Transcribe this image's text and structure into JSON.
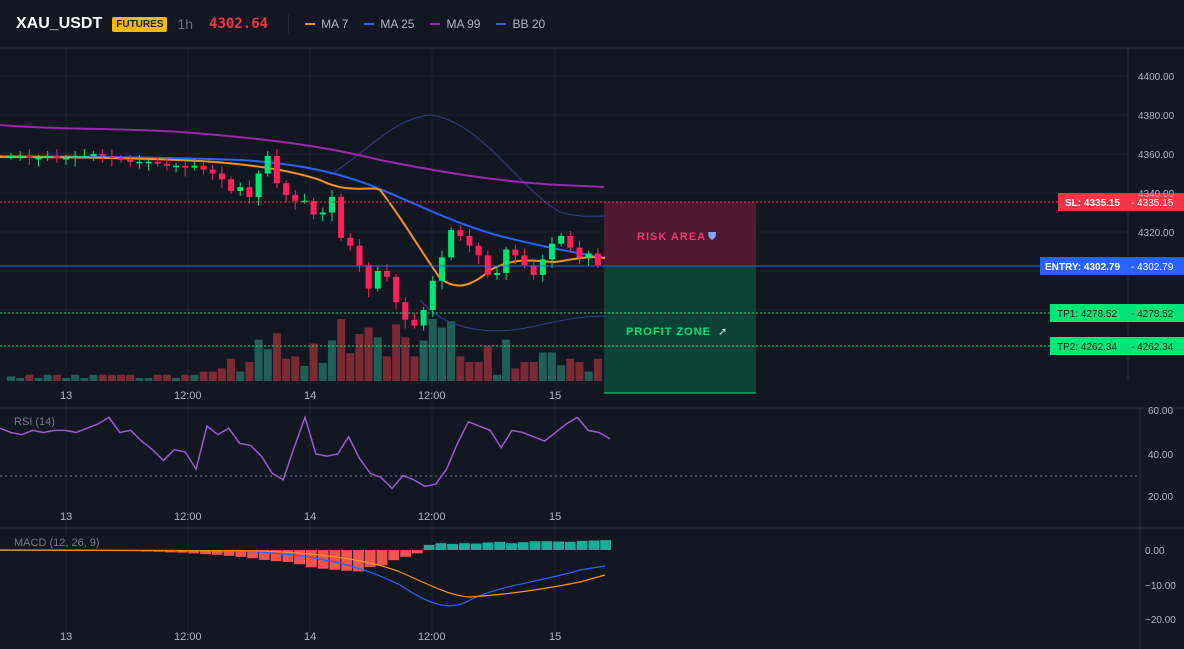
{
  "header": {
    "symbol": "XAU_USDT",
    "badge": "FUTURES",
    "timeframe": "1h",
    "price": "4302.64",
    "indicators": [
      {
        "label": "MA 7",
        "color": "#f7931a"
      },
      {
        "label": "MA 25",
        "color": "#2962ff"
      },
      {
        "label": "MA 99",
        "color": "#9c27b0"
      },
      {
        "label": "BB 20",
        "color": "#3b5bdb"
      }
    ]
  },
  "main_chart": {
    "y_ticks": [
      "4400.00",
      "4380.00",
      "4360.00",
      "4340.00",
      "4320.00"
    ],
    "x_ticks": [
      "13",
      "12:00",
      "14",
      "12:00",
      "15"
    ],
    "levels": {
      "sl": {
        "label": "SL: 4335.15",
        "value": "4335.15",
        "color": "#f23645"
      },
      "entry": {
        "label": "ENTRY: 4302.79",
        "value": "4302.79",
        "color": "#2962ff"
      },
      "tp1": {
        "label": "TP1: 4278.52",
        "value": "4278.52",
        "color": "#00e676"
      },
      "tp2": {
        "label": "TP2: 4262.34",
        "value": "4262.34",
        "color": "#00e676"
      }
    },
    "risk_label": "RISK AREA",
    "profit_label": "PROFIT ZONE"
  },
  "rsi": {
    "title": "RSI (14)",
    "y_ticks": [
      "60.00",
      "40.00",
      "20.00"
    ],
    "x_ticks": [
      "13",
      "12:00",
      "14",
      "12:00",
      "15"
    ]
  },
  "macd": {
    "title": "MACD (12, 26, 9)",
    "y_ticks": [
      "0.00",
      "−10.00",
      "−20.00"
    ],
    "x_ticks": [
      "13",
      "12:00",
      "14",
      "12:00",
      "15"
    ]
  },
  "chart_data": {
    "type": "candlestick",
    "x_labels": [
      "13",
      "12:00",
      "14",
      "12:00",
      "15"
    ],
    "ylim": [
      4250,
      4410
    ],
    "candles_approx_close": [
      4359,
      4359,
      4358,
      4358,
      4359,
      4358,
      4358,
      4359,
      4359,
      4360,
      4359,
      4358,
      4357,
      4356,
      4356,
      4356,
      4355,
      4354,
      4354,
      4353,
      4354,
      4352,
      4350,
      4347,
      4341,
      4343,
      4338,
      4350,
      4359,
      4345,
      4339,
      4336,
      4336,
      4329,
      4330,
      4338,
      4317,
      4313,
      4303,
      4291,
      4300,
      4297,
      4284,
      4275,
      4272,
      4280,
      4295,
      4307,
      4321,
      4318,
      4313,
      4308,
      4298,
      4299,
      4311,
      4308,
      4303,
      4298,
      4306,
      4314,
      4318,
      4312,
      4307,
      4309,
      4303
    ],
    "rsi_values": [
      52,
      50,
      49,
      51,
      50,
      51,
      51,
      50,
      52,
      54,
      57,
      50,
      51,
      46,
      42,
      37,
      42,
      41,
      33,
      53,
      49,
      52,
      45,
      44,
      39,
      31,
      28,
      43,
      57,
      40,
      39,
      40,
      48,
      38,
      31,
      29,
      24,
      30,
      28,
      25,
      26,
      33,
      45,
      55,
      53,
      51,
      43,
      51,
      50,
      48,
      46,
      50,
      54,
      57,
      51,
      50,
      47
    ],
    "macd_values": [
      0,
      0,
      0,
      0,
      0,
      0,
      0,
      0,
      0,
      0,
      -0.2,
      -0.3,
      -0.4,
      -0.5,
      -0.7,
      -0.8,
      -1,
      -1.2,
      -1.4,
      -1.7,
      -2,
      -2.4,
      -2.9,
      -3.3,
      -3.5,
      -4.2,
      -5.1,
      -5.5,
      -5.8,
      -6.1,
      -6.3,
      -5,
      -4.5,
      -3,
      -2,
      -1,
      1.5,
      2,
      1.8,
      2,
      1.9,
      2.2,
      2.4,
      2,
      2.3,
      2.6,
      2.6,
      2.5,
      2.4,
      2.7,
      2.8,
      2.9
    ]
  }
}
